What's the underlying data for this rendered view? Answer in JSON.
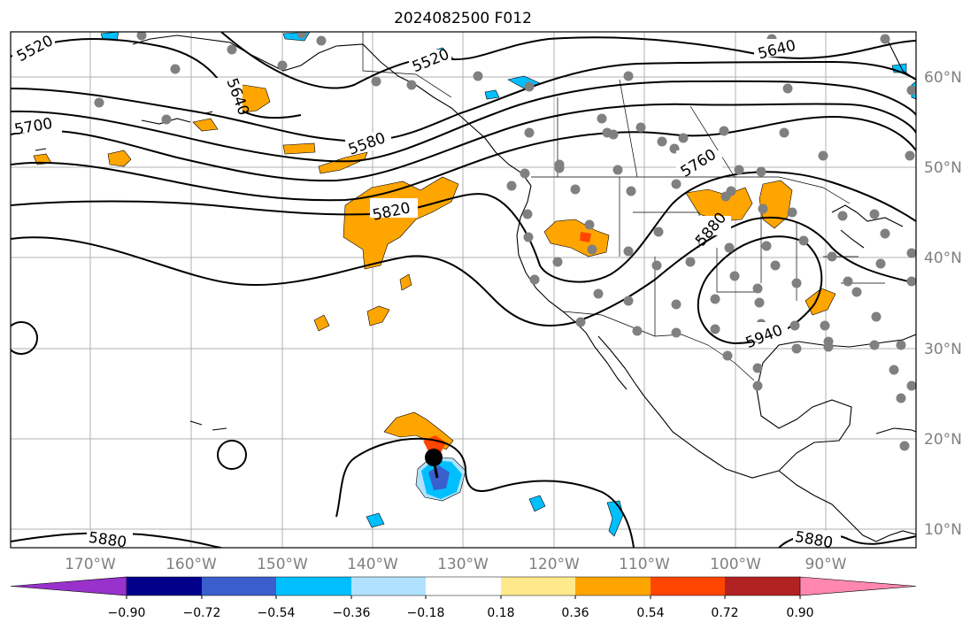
{
  "title": "2024082500 F012",
  "map": {
    "longitude_labels": [
      "170°W",
      "160°W",
      "150°W",
      "140°W",
      "130°W",
      "120°W",
      "110°W",
      "100°W",
      "90°W"
    ],
    "latitude_labels": [
      "60°N",
      "50°N",
      "40°N",
      "30°N",
      "20°N",
      "10°N"
    ],
    "contour_labels": [
      "5520",
      "5520",
      "5640",
      "5700",
      "5580",
      "5760",
      "5820",
      "5880",
      "5940",
      "5880",
      "5880",
      "5640"
    ],
    "contour_color": "#000000",
    "coastline_color": "#000000",
    "station_marker_color": "#808080",
    "storm_marker_color": "#000000"
  },
  "colorbar": {
    "tick_labels": [
      "−0.90",
      "−0.72",
      "−0.54",
      "−0.36",
      "−0.18",
      "0.18",
      "0.36",
      "0.54",
      "0.72",
      "0.90"
    ],
    "colors": [
      "#9932cc",
      "#00008b",
      "#3a5fcd",
      "#00bfff",
      "#b0e2ff",
      "#ffffff",
      "#ffe98a",
      "#ffa500",
      "#ff4500",
      "#b22222",
      "#ff87b0"
    ]
  }
}
